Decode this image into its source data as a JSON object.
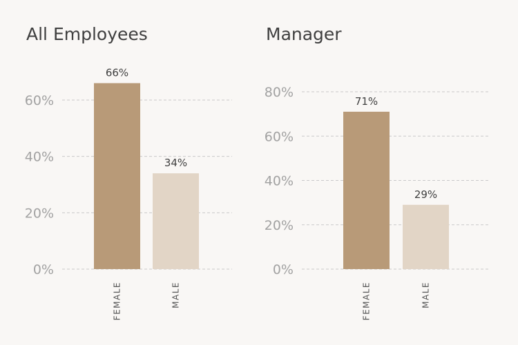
{
  "colors": {
    "background": "#f9f7f5",
    "female": "#b89a78",
    "male": "#e2d5c6"
  },
  "chart_data": [
    {
      "type": "bar",
      "title": "All Employees",
      "categories": [
        "FEMALE",
        "MALE"
      ],
      "values": [
        66,
        34
      ],
      "value_labels": [
        "66%",
        "34%"
      ],
      "ylim": [
        0,
        70
      ],
      "yticks": [
        0,
        20,
        40,
        60
      ],
      "ytick_labels": [
        "0%",
        "20%",
        "40%",
        "60%"
      ],
      "grid": true,
      "legend": "none"
    },
    {
      "type": "bar",
      "title": "Manager",
      "categories": [
        "FEMALE",
        "MALE"
      ],
      "values": [
        71,
        29
      ],
      "value_labels": [
        "71%",
        "29%"
      ],
      "ylim": [
        0,
        80
      ],
      "yticks": [
        0,
        20,
        40,
        60,
        80
      ],
      "ytick_labels": [
        "0%",
        "20%",
        "40%",
        "60%",
        "80%"
      ],
      "grid": true,
      "legend": "none"
    }
  ]
}
